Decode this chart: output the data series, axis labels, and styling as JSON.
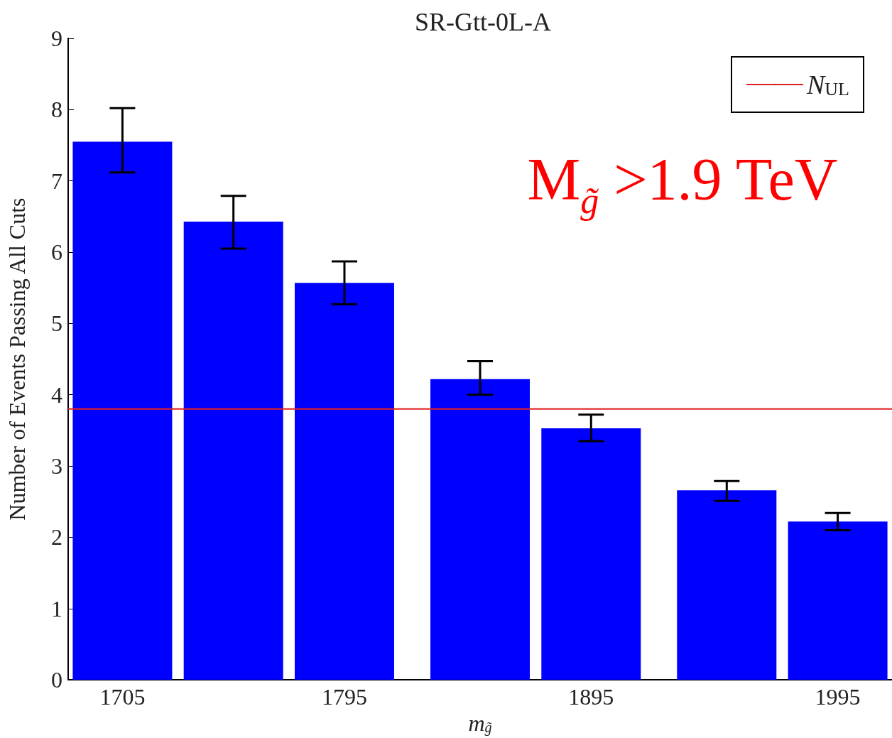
{
  "chart_data": {
    "type": "bar",
    "title": "SR-Gtt-0L-A",
    "xlabel": "m$_{g̃}$",
    "ylabel": "Number of Events Passing All Cuts",
    "x": [
      1705,
      1750,
      1795,
      1850,
      1895,
      1950,
      1995
    ],
    "series": [
      {
        "color": "#0000ff",
        "values": [
          7.55,
          6.43,
          5.57,
          4.22,
          3.53,
          2.66,
          2.22
        ],
        "errors": [
          [
            7.12,
            8.02
          ],
          [
            6.05,
            6.79
          ],
          [
            5.27,
            5.87
          ],
          [
            4.0,
            4.47
          ],
          [
            3.35,
            3.72
          ],
          [
            2.51,
            2.79
          ],
          [
            2.1,
            2.34
          ]
        ]
      }
    ],
    "xlim": [
      1683,
      2017
    ],
    "xticks": [
      1705,
      1795,
      1895,
      1995
    ],
    "ylim": [
      0,
      9
    ],
    "yticks": [
      0,
      1,
      2,
      3,
      4,
      5,
      6,
      7,
      8,
      9
    ],
    "ref_lines": [
      {
        "axis": "y",
        "value": 3.8,
        "label": "N$_{UL}$",
        "color": "#e02020"
      }
    ],
    "annotations": [
      "M$_{g̃}$ >1.9 TeV"
    ],
    "legend": "top right",
    "grid": false
  }
}
